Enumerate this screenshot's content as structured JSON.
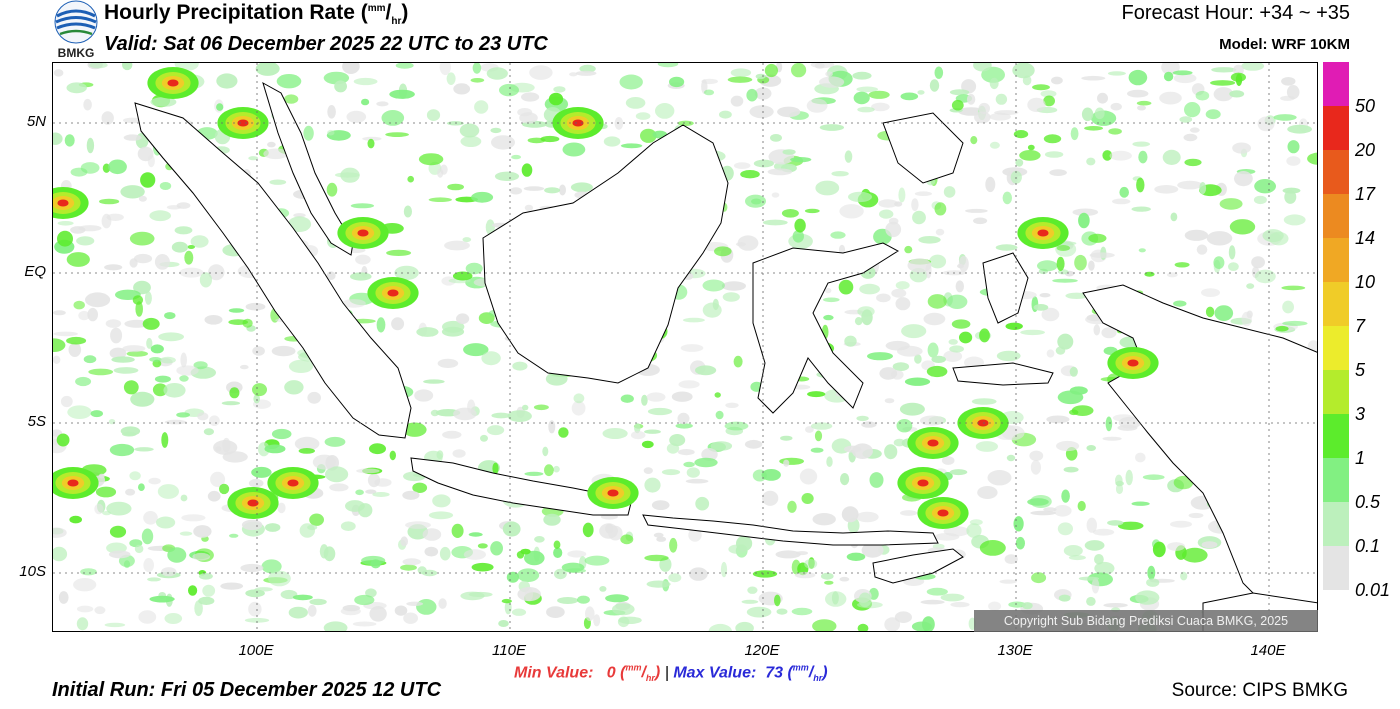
{
  "header": {
    "title_main": "Hourly Precipitation Rate (",
    "title_unit_sup": "mm",
    "title_unit_sep": "/",
    "title_unit_sub": "hr",
    "title_close": ")",
    "valid": "Valid: Sat 06 December 2025 22 UTC to 23 UTC",
    "forecast_hour": "Forecast Hour: +34 ~ +35",
    "model": "Model: WRF 10KM",
    "logo_text": "BMKG"
  },
  "axes": {
    "latitudes": [
      "5N",
      "EQ",
      "5S",
      "10S"
    ],
    "longitudes": [
      "100E",
      "110E",
      "120E",
      "130E",
      "140E"
    ]
  },
  "legend": {
    "labels": [
      "50",
      "20",
      "17",
      "14",
      "10",
      "7",
      "5",
      "3",
      "1",
      "0.5",
      "0.1",
      "0.01"
    ],
    "colors": [
      "#e01cb4",
      "#e8281c",
      "#e85a1c",
      "#ec8a20",
      "#f0a824",
      "#f0cc28",
      "#ecec2c",
      "#b4ec2c",
      "#5cec2c",
      "#82f082",
      "#bcf0bc",
      "#e4e4e4"
    ]
  },
  "stats": {
    "min_label": "Min Value:",
    "min_value": "0",
    "max_label": "Max Value:",
    "max_value": "73",
    "unit_sup": "mm",
    "unit_sub": "hr",
    "separator": "|"
  },
  "footer": {
    "initial_run": "Initial Run: Fri 05 December 2025 12 UTC",
    "source": "Source: CIPS BMKG",
    "copyright": "Copyright Sub Bidang Prediksi Cuaca BMKG, 2025"
  }
}
